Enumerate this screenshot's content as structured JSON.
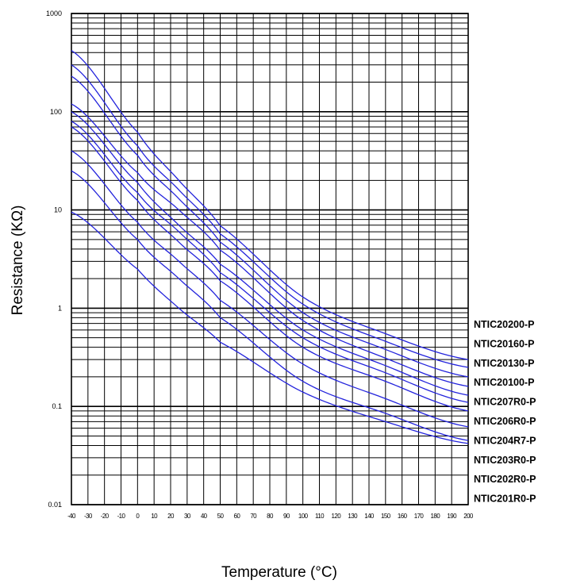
{
  "chart_data": {
    "type": "line",
    "title": "",
    "xlabel": "Temperature (°C)",
    "ylabel": "Resistance (KΩ)",
    "xlim": [
      -40,
      200
    ],
    "ylim": [
      0.01,
      1000
    ],
    "y_scale": "log",
    "grid": true,
    "legend": "right",
    "x_ticks": [
      "-40",
      "-30",
      "-20",
      "-10",
      "0",
      "10",
      "20",
      "30",
      "40",
      "50",
      "60",
      "70",
      "80",
      "90",
      "100",
      "110",
      "120",
      "130",
      "140",
      "150",
      "160",
      "170",
      "180",
      "190",
      "200"
    ],
    "y_ticks": [
      "0.01",
      "0.1",
      "1",
      "10",
      "100",
      "1000"
    ],
    "line_color": "#2323dc",
    "grid_color": "#000000",
    "series": [
      {
        "name": "NTIC20200-P",
        "x": [
          -40,
          0,
          25,
          50,
          100,
          150,
          200
        ],
        "values": [
          420,
          62,
          20,
          6.9,
          1.3,
          0.55,
          0.3
        ]
      },
      {
        "name": "NTIC20160-P",
        "x": [
          -40,
          0,
          25,
          50,
          100,
          150,
          200
        ],
        "values": [
          300,
          45,
          16,
          5.7,
          1.1,
          0.46,
          0.25
        ]
      },
      {
        "name": "NTIC20130-P",
        "x": [
          -40,
          0,
          25,
          50,
          100,
          150,
          200
        ],
        "values": [
          230,
          36,
          13,
          4.7,
          0.9,
          0.38,
          0.2
        ]
      },
      {
        "name": "NTIC20100-P",
        "x": [
          -40,
          0,
          25,
          50,
          100,
          150,
          200
        ],
        "values": [
          120,
          24,
          10,
          3.9,
          0.75,
          0.31,
          0.16
        ]
      },
      {
        "name": "NTIC207R0-P",
        "x": [
          -40,
          0,
          25,
          50,
          100,
          150,
          200
        ],
        "values": [
          100,
          19,
          7,
          2.8,
          0.6,
          0.26,
          0.13
        ]
      },
      {
        "name": "NTIC206R0-P",
        "x": [
          -40,
          0,
          25,
          50,
          100,
          150,
          200
        ],
        "values": [
          80,
          15,
          6,
          2.3,
          0.5,
          0.22,
          0.11
        ]
      },
      {
        "name": "NTIC204R7-P",
        "x": [
          -40,
          0,
          25,
          50,
          100,
          150,
          200
        ],
        "values": [
          70,
          12.5,
          4.7,
          1.9,
          0.4,
          0.18,
          0.09
        ]
      },
      {
        "name": "NTIC203R0-P",
        "x": [
          -40,
          0,
          25,
          50,
          100,
          150,
          200
        ],
        "values": [
          40,
          7.5,
          3,
          1.2,
          0.27,
          0.12,
          0.062
        ]
      },
      {
        "name": "NTIC202R0-P",
        "x": [
          -40,
          0,
          25,
          50,
          100,
          150,
          200
        ],
        "values": [
          25,
          5,
          2,
          0.8,
          0.18,
          0.085,
          0.045
        ]
      },
      {
        "name": "NTIC201R0-P",
        "x": [
          -40,
          0,
          25,
          50,
          100,
          150,
          200
        ],
        "values": [
          9.5,
          2.5,
          1,
          0.45,
          0.14,
          0.07,
          0.042
        ]
      }
    ]
  }
}
